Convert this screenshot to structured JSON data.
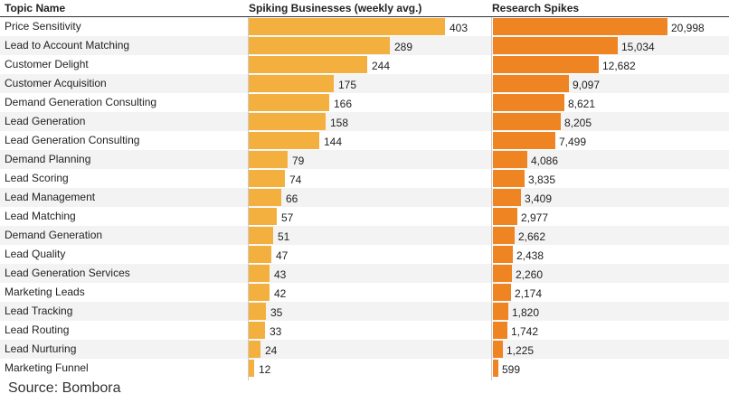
{
  "chart_data": {
    "type": "table",
    "columns": {
      "topic": "Topic Name",
      "businesses": "Spiking Businesses (weekly avg.)",
      "spikes": "Research Spikes"
    },
    "rows": [
      {
        "topic": "Price Sensitivity",
        "businesses": 403,
        "businesses_label": "403",
        "spikes": 20998,
        "spikes_label": "20,998"
      },
      {
        "topic": "Lead to Account Matching",
        "businesses": 289,
        "businesses_label": "289",
        "spikes": 15034,
        "spikes_label": "15,034"
      },
      {
        "topic": "Customer Delight",
        "businesses": 244,
        "businesses_label": "244",
        "spikes": 12682,
        "spikes_label": "12,682"
      },
      {
        "topic": "Customer Acquisition",
        "businesses": 175,
        "businesses_label": "175",
        "spikes": 9097,
        "spikes_label": "9,097"
      },
      {
        "topic": "Demand Generation Consulting",
        "businesses": 166,
        "businesses_label": "166",
        "spikes": 8621,
        "spikes_label": "8,621"
      },
      {
        "topic": "Lead Generation",
        "businesses": 158,
        "businesses_label": "158",
        "spikes": 8205,
        "spikes_label": "8,205"
      },
      {
        "topic": "Lead Generation Consulting",
        "businesses": 144,
        "businesses_label": "144",
        "spikes": 7499,
        "spikes_label": "7,499"
      },
      {
        "topic": "Demand Planning",
        "businesses": 79,
        "businesses_label": "79",
        "spikes": 4086,
        "spikes_label": "4,086"
      },
      {
        "topic": "Lead Scoring",
        "businesses": 74,
        "businesses_label": "74",
        "spikes": 3835,
        "spikes_label": "3,835"
      },
      {
        "topic": "Lead Management",
        "businesses": 66,
        "businesses_label": "66",
        "spikes": 3409,
        "spikes_label": "3,409"
      },
      {
        "topic": "Lead Matching",
        "businesses": 57,
        "businesses_label": "57",
        "spikes": 2977,
        "spikes_label": "2,977"
      },
      {
        "topic": "Demand Generation",
        "businesses": 51,
        "businesses_label": "51",
        "spikes": 2662,
        "spikes_label": "2,662"
      },
      {
        "topic": "Lead Quality",
        "businesses": 47,
        "businesses_label": "47",
        "spikes": 2438,
        "spikes_label": "2,438"
      },
      {
        "topic": "Lead Generation Services",
        "businesses": 43,
        "businesses_label": "43",
        "spikes": 2260,
        "spikes_label": "2,260"
      },
      {
        "topic": "Marketing Leads",
        "businesses": 42,
        "businesses_label": "42",
        "spikes": 2174,
        "spikes_label": "2,174"
      },
      {
        "topic": "Lead Tracking",
        "businesses": 35,
        "businesses_label": "35",
        "spikes": 1820,
        "spikes_label": "1,820"
      },
      {
        "topic": "Lead Routing",
        "businesses": 33,
        "businesses_label": "33",
        "spikes": 1742,
        "spikes_label": "1,742"
      },
      {
        "topic": "Lead Nurturing",
        "businesses": 24,
        "businesses_label": "24",
        "spikes": 1225,
        "spikes_label": "1,225"
      },
      {
        "topic": "Marketing Funnel",
        "businesses": 12,
        "businesses_label": "12",
        "spikes": 599,
        "spikes_label": "599"
      }
    ],
    "businesses_max": 403,
    "spikes_max": 20998,
    "colors": {
      "businesses": "#f4b03e",
      "spikes": "#ef8423",
      "row_stripe": "#f3f3f3"
    }
  },
  "footer": {
    "source": "Source: Bombora"
  }
}
